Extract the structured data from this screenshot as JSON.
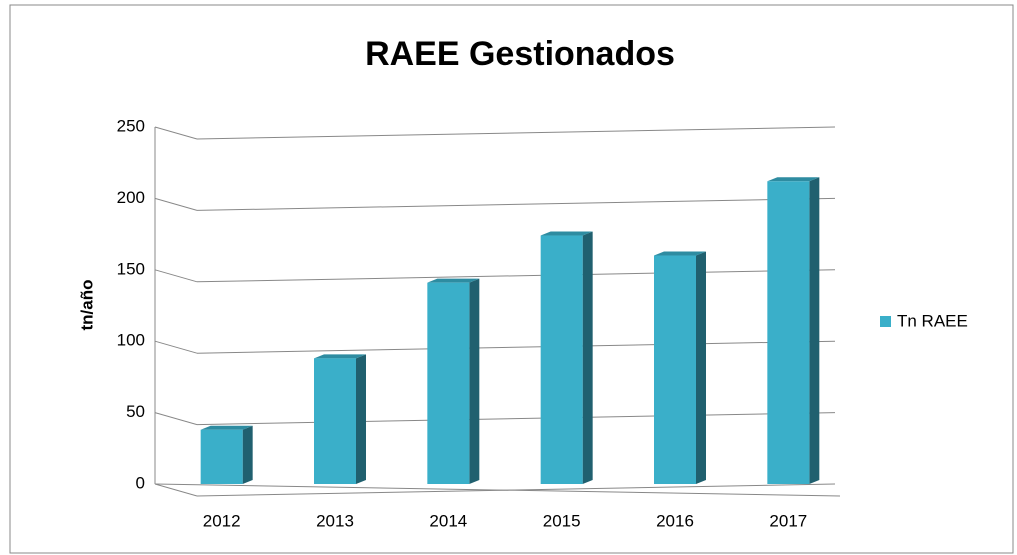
{
  "chart_data": {
    "type": "bar",
    "title": "RAEE Gestionados",
    "y_label": "tn/año",
    "categories": [
      "2012",
      "2013",
      "2014",
      "2015",
      "2016",
      "2017"
    ],
    "series": [
      {
        "name": "Tn RAEE",
        "color": "#3aafc9",
        "values": [
          38,
          88,
          141,
          174,
          160,
          212
        ]
      }
    ],
    "ylim": [
      0,
      250
    ],
    "yticks": [
      0,
      50,
      100,
      150,
      200,
      250
    ],
    "grid": true,
    "legend": "right"
  }
}
